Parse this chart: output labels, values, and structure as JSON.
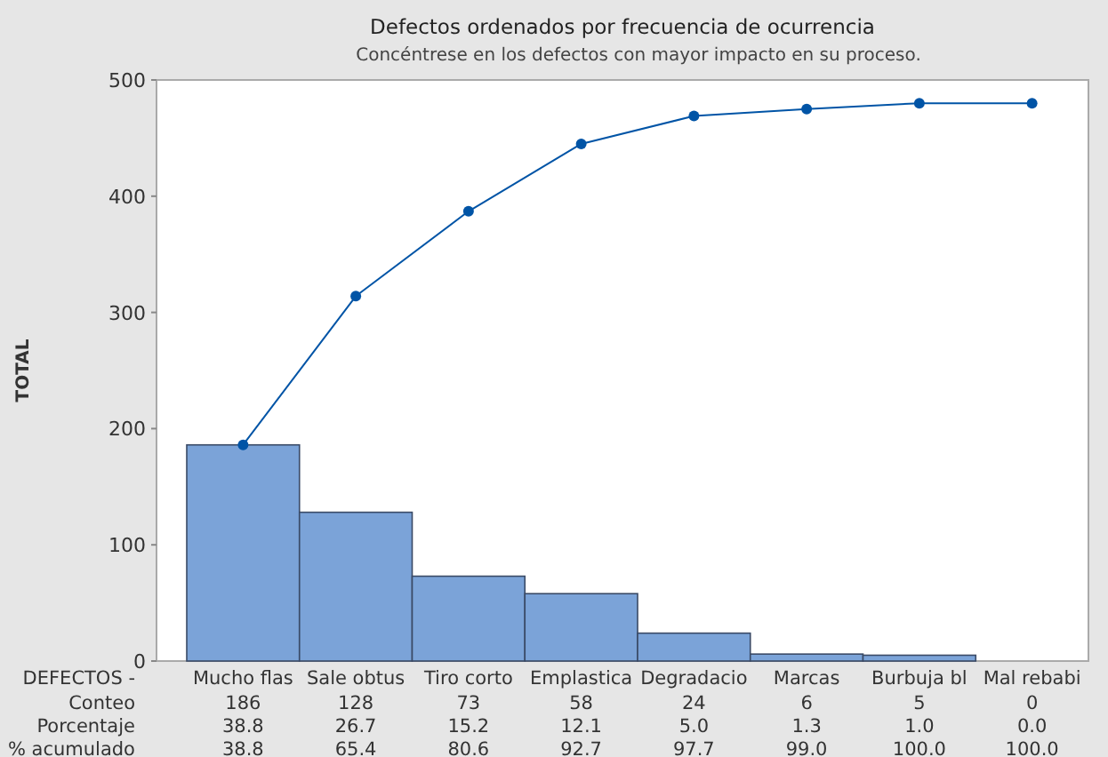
{
  "chart_data": {
    "type": "bar",
    "title": "Defectos ordenados por frecuencia de ocurrencia",
    "subtitle": "Concéntrese en los defectos con mayor impacto en su proceso.",
    "xlabel": "DEFECTOS -",
    "ylabel": "TOTAL",
    "categories": [
      "Mucho flas",
      "Sale obtus",
      "Tiro corto",
      "Emplastica",
      "Degradacio",
      "Marcas",
      "Burbuja bl",
      "Mal rebabi"
    ],
    "ylim": [
      0,
      500
    ],
    "yticks": [
      0,
      100,
      200,
      300,
      400,
      500
    ],
    "grid": false,
    "series": [
      {
        "color": "#7ba3d8",
        "values": [
          186,
          128,
          73,
          58,
          24,
          6,
          5,
          0
        ],
        "value_labels": [
          "186",
          "128",
          "73",
          "58",
          "24",
          "6",
          "5",
          "0"
        ]
      },
      {
        "type": "line",
        "color": "#0054a6",
        "marker": "circle",
        "line_style": "solid",
        "values": [
          186,
          314,
          387,
          445,
          469,
          475,
          480,
          480
        ]
      }
    ],
    "annotations": [
      "Conteo",
      "Porcentaje",
      "% acumulado",
      "38.8",
      "26.7",
      "15.2",
      "12.1",
      "5.0",
      "1.3",
      "1.0",
      "0.0",
      "38.8",
      "65.4",
      "80.6",
      "92.7",
      "97.7",
      "99.0",
      "100.0",
      "100.0"
    ]
  }
}
